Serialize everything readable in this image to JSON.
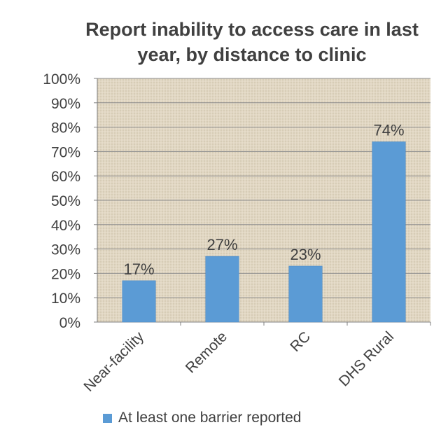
{
  "chart_data": {
    "type": "bar",
    "title_lines": [
      "Report inability to access care in last",
      "year, by distance to clinic"
    ],
    "categories": [
      "Near-facility",
      "Remote",
      "RC",
      "DHS Rural"
    ],
    "series": [
      {
        "name": "At least one barrier reported",
        "values": [
          17,
          27,
          23,
          74
        ],
        "data_labels": [
          "17%",
          "27%",
          "23%",
          "74%"
        ],
        "color": "#5b9bd5"
      }
    ],
    "ylim": [
      0,
      100
    ],
    "y_ticks": [
      "0%",
      "10%",
      "20%",
      "30%",
      "40%",
      "50%",
      "60%",
      "70%",
      "80%",
      "90%",
      "100%"
    ],
    "grid": true,
    "plot_background": "burlap-texture",
    "legend_position": "bottom"
  }
}
